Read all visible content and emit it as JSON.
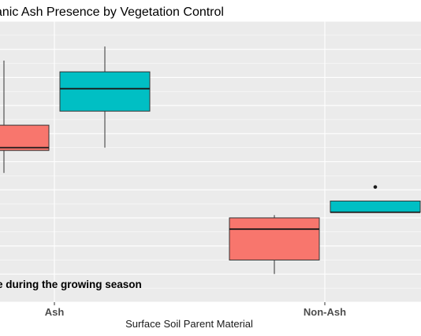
{
  "chart_data": {
    "type": "boxplot",
    "title": "anic Ash Presence by Vegetation Control",
    "xlabel": "Surface Soil Parent Material",
    "ylabel": "",
    "categories": [
      "Ash",
      "Non-Ash"
    ],
    "annotation": "e during the growing season",
    "ylim": [
      0,
      10
    ],
    "grid": true,
    "series": [
      {
        "color": "#f8766d",
        "boxes": [
          {
            "category": "Ash",
            "min": 4.6,
            "q1": 5.4,
            "median": 5.5,
            "q3": 6.3,
            "max": 8.6,
            "outliers": []
          },
          {
            "category": "Non-Ash",
            "min": 1.0,
            "q1": 1.5,
            "median": 2.6,
            "q3": 3.0,
            "max": 3.1,
            "outliers": []
          }
        ]
      },
      {
        "color": "#00bfc4",
        "boxes": [
          {
            "category": "Ash",
            "min": 5.5,
            "q1": 6.8,
            "median": 7.6,
            "q3": 8.2,
            "max": 9.1,
            "outliers": []
          },
          {
            "category": "Non-Ash",
            "min": 3.2,
            "q1": 3.2,
            "median": 3.2,
            "q3": 3.6,
            "max": 3.6,
            "outliers": [
              4.1
            ]
          }
        ]
      }
    ]
  }
}
